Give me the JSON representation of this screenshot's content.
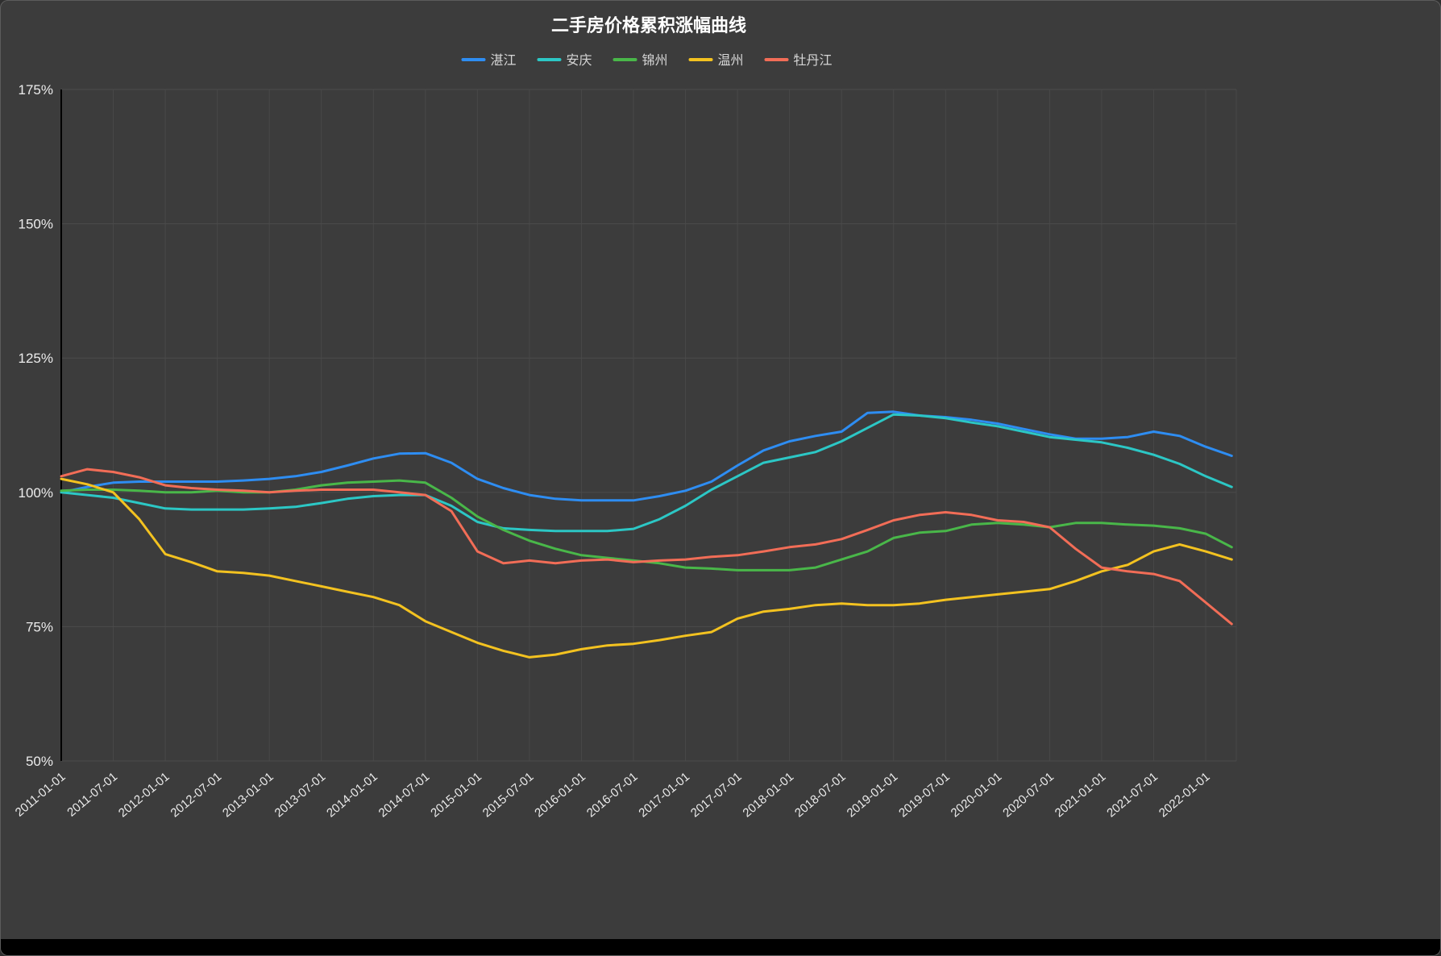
{
  "title": "二手房价格累积涨幅曲线",
  "colors": {
    "background": "#3c3c3c",
    "grid": "#4b4b4b",
    "axis": "#000000",
    "text": "#ffffff",
    "legend_text": "#d6d6d6"
  },
  "chart_data": {
    "type": "line",
    "title": "二手房价格累积涨幅曲线",
    "xlabel": "",
    "ylabel": "",
    "ylim": [
      50,
      175
    ],
    "grid": true,
    "legend_position": "top",
    "yticks": [
      "50%",
      "75%",
      "100%",
      "125%",
      "150%",
      "175%"
    ],
    "xticks": [
      "2011-01-01",
      "2011-07-01",
      "2012-01-01",
      "2012-07-01",
      "2013-01-01",
      "2013-07-01",
      "2014-01-01",
      "2014-07-01",
      "2015-01-01",
      "2015-07-01",
      "2016-01-01",
      "2016-07-01",
      "2017-01-01",
      "2017-07-01",
      "2018-01-01",
      "2018-07-01",
      "2019-01-01",
      "2019-07-01",
      "2020-01-01",
      "2020-07-01",
      "2021-01-01",
      "2021-07-01",
      "2022-01-01"
    ],
    "x": [
      "2011-01",
      "2011-04",
      "2011-07",
      "2011-10",
      "2012-01",
      "2012-04",
      "2012-07",
      "2012-10",
      "2013-01",
      "2013-04",
      "2013-07",
      "2013-10",
      "2014-01",
      "2014-04",
      "2014-07",
      "2014-10",
      "2015-01",
      "2015-04",
      "2015-07",
      "2015-10",
      "2016-01",
      "2016-04",
      "2016-07",
      "2016-10",
      "2017-01",
      "2017-04",
      "2017-07",
      "2017-10",
      "2018-01",
      "2018-04",
      "2018-07",
      "2018-10",
      "2019-01",
      "2019-04",
      "2019-07",
      "2019-10",
      "2020-01",
      "2020-04",
      "2020-07",
      "2020-10",
      "2021-01",
      "2021-04",
      "2021-07",
      "2021-10",
      "2022-01",
      "2022-04"
    ],
    "series": [
      {
        "name": "湛江",
        "color": "#2e8df2",
        "values": [
          100,
          101,
          101.8,
          102,
          102,
          102,
          102,
          102.2,
          102.5,
          103,
          103.8,
          105,
          106.3,
          107.2,
          107.3,
          105.5,
          102.5,
          100.8,
          99.5,
          98.8,
          98.5,
          98.5,
          98.5,
          99.3,
          100.3,
          102,
          105,
          107.8,
          109.5,
          110.5,
          111.3,
          114.8,
          115,
          114.3,
          114,
          113.5,
          112.8,
          111.8,
          110.8,
          110,
          110,
          110.3,
          111.3,
          110.5,
          108.5,
          106.8
        ]
      },
      {
        "name": "安庆",
        "color": "#2cc7c5",
        "values": [
          100,
          99.5,
          99,
          98,
          97,
          96.8,
          96.8,
          96.8,
          97,
          97.3,
          98,
          98.8,
          99.3,
          99.5,
          99.5,
          97.5,
          94.5,
          93.3,
          93,
          92.8,
          92.8,
          92.8,
          93.2,
          95,
          97.5,
          100.5,
          103,
          105.5,
          106.5,
          107.5,
          109.5,
          112,
          114.5,
          114.3,
          113.8,
          113,
          112.3,
          111.3,
          110.3,
          109.8,
          109.3,
          108.3,
          107,
          105.3,
          103,
          101
        ]
      },
      {
        "name": "锦州",
        "color": "#49b749",
        "values": [
          100.3,
          100.5,
          100.5,
          100.3,
          100,
          100,
          100.3,
          100,
          100,
          100.5,
          101.3,
          101.8,
          102,
          102.2,
          101.8,
          99,
          95.5,
          93,
          91,
          89.5,
          88.3,
          87.8,
          87.3,
          86.8,
          86,
          85.8,
          85.5,
          85.5,
          85.5,
          86,
          87.5,
          89,
          91.5,
          92.5,
          92.8,
          94,
          94.3,
          94,
          93.5,
          94.3,
          94.3,
          94,
          93.8,
          93.3,
          92.3,
          89.8
        ]
      },
      {
        "name": "温州",
        "color": "#f3c220",
        "values": [
          102.5,
          101.5,
          100,
          95,
          88.5,
          87,
          85.3,
          85,
          84.5,
          83.5,
          82.5,
          81.5,
          80.5,
          79,
          76,
          74,
          72,
          70.5,
          69.3,
          69.8,
          70.8,
          71.5,
          71.8,
          72.5,
          73.3,
          74,
          76.5,
          77.8,
          78.3,
          79,
          79.3,
          79,
          79,
          79.3,
          80,
          80.5,
          81,
          81.5,
          82,
          83.5,
          85.3,
          86.5,
          89,
          90.3,
          89,
          87.5
        ]
      },
      {
        "name": "牡丹江",
        "color": "#f26d57",
        "values": [
          103,
          104.3,
          103.8,
          102.8,
          101.3,
          100.8,
          100.5,
          100.3,
          100,
          100.3,
          100.5,
          100.5,
          100.5,
          100,
          99.5,
          96.5,
          89,
          86.8,
          87.3,
          86.8,
          87.3,
          87.5,
          87,
          87.3,
          87.5,
          88,
          88.3,
          89,
          89.8,
          90.3,
          91.3,
          93,
          94.8,
          95.8,
          96.3,
          95.8,
          94.8,
          94.5,
          93.5,
          89.5,
          86,
          85.3,
          84.8,
          83.5,
          79.5,
          75.5
        ]
      }
    ]
  }
}
